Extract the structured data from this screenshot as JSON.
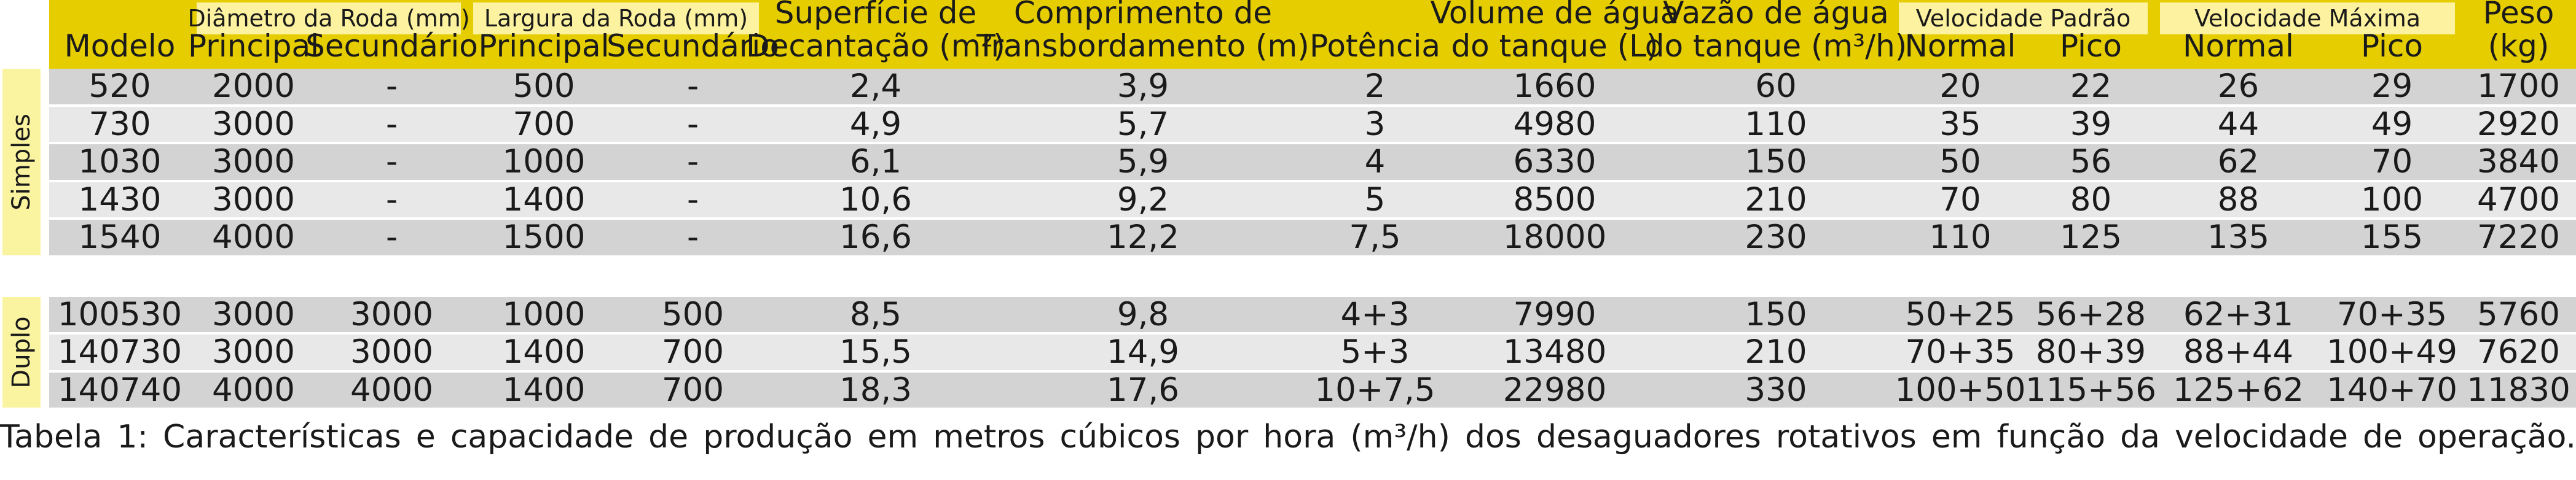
{
  "colors": {
    "header_bg": "#e5cd00",
    "group_label_bg": "#fdf2a0",
    "side_bg": "#faf3a0",
    "row_dark": "#d3d3d3",
    "row_light": "#e8e8e8",
    "text": "#1a1a1a"
  },
  "groups": {
    "diametro": "Diâmetro da Roda (mm)",
    "largura": "Largura da Roda (mm)",
    "vel_padrao": "Velocidade Padrão",
    "vel_maxima": "Velocidade Máxima"
  },
  "headers": [
    [
      "Modelo"
    ],
    [
      "Principal"
    ],
    [
      "Secundário"
    ],
    [
      "Principal"
    ],
    [
      "Secundário"
    ],
    [
      "Superfície de",
      "Decantação (m²)"
    ],
    [
      "Comprimento de",
      "Transbordamento (m)"
    ],
    [
      "Potência"
    ],
    [
      "Volume de água",
      "do tanque (L)"
    ],
    [
      "Vazão de água",
      "do tanque (m³/h)"
    ],
    [
      "Normal"
    ],
    [
      "Pico"
    ],
    [
      "Normal"
    ],
    [
      "Pico"
    ],
    [
      "Peso",
      "(kg)"
    ]
  ],
  "sections": [
    {
      "label": "Simples",
      "rows": [
        [
          "520",
          "2000",
          "-",
          "500",
          "-",
          "2,4",
          "3,9",
          "2",
          "1660",
          "60",
          "20",
          "22",
          "26",
          "29",
          "1700"
        ],
        [
          "730",
          "3000",
          "-",
          "700",
          "-",
          "4,9",
          "5,7",
          "3",
          "4980",
          "110",
          "35",
          "39",
          "44",
          "49",
          "2920"
        ],
        [
          "1030",
          "3000",
          "-",
          "1000",
          "-",
          "6,1",
          "5,9",
          "4",
          "6330",
          "150",
          "50",
          "56",
          "62",
          "70",
          "3840"
        ],
        [
          "1430",
          "3000",
          "-",
          "1400",
          "-",
          "10,6",
          "9,2",
          "5",
          "8500",
          "210",
          "70",
          "80",
          "88",
          "100",
          "4700"
        ],
        [
          "1540",
          "4000",
          "-",
          "1500",
          "-",
          "16,6",
          "12,2",
          "7,5",
          "18000",
          "230",
          "110",
          "125",
          "135",
          "155",
          "7220"
        ]
      ]
    },
    {
      "label": "Duplo",
      "rows": [
        [
          "100530",
          "3000",
          "3000",
          "1000",
          "500",
          "8,5",
          "9,8",
          "4+3",
          "7990",
          "150",
          "50+25",
          "56+28",
          "62+31",
          "70+35",
          "5760"
        ],
        [
          "140730",
          "3000",
          "3000",
          "1400",
          "700",
          "15,5",
          "14,9",
          "5+3",
          "13480",
          "210",
          "70+35",
          "80+39",
          "88+44",
          "100+49",
          "7620"
        ],
        [
          "140740",
          "4000",
          "4000",
          "1400",
          "700",
          "18,3",
          "17,6",
          "10+7,5",
          "22980",
          "330",
          "100+50",
          "115+56",
          "125+62",
          "140+70",
          "11830"
        ]
      ]
    }
  ],
  "caption": "Tabela 1: Características e capacidade de produção em metros cúbicos por hora (m³/h) dos desaguadores rotativos em função da velocidade de operação."
}
